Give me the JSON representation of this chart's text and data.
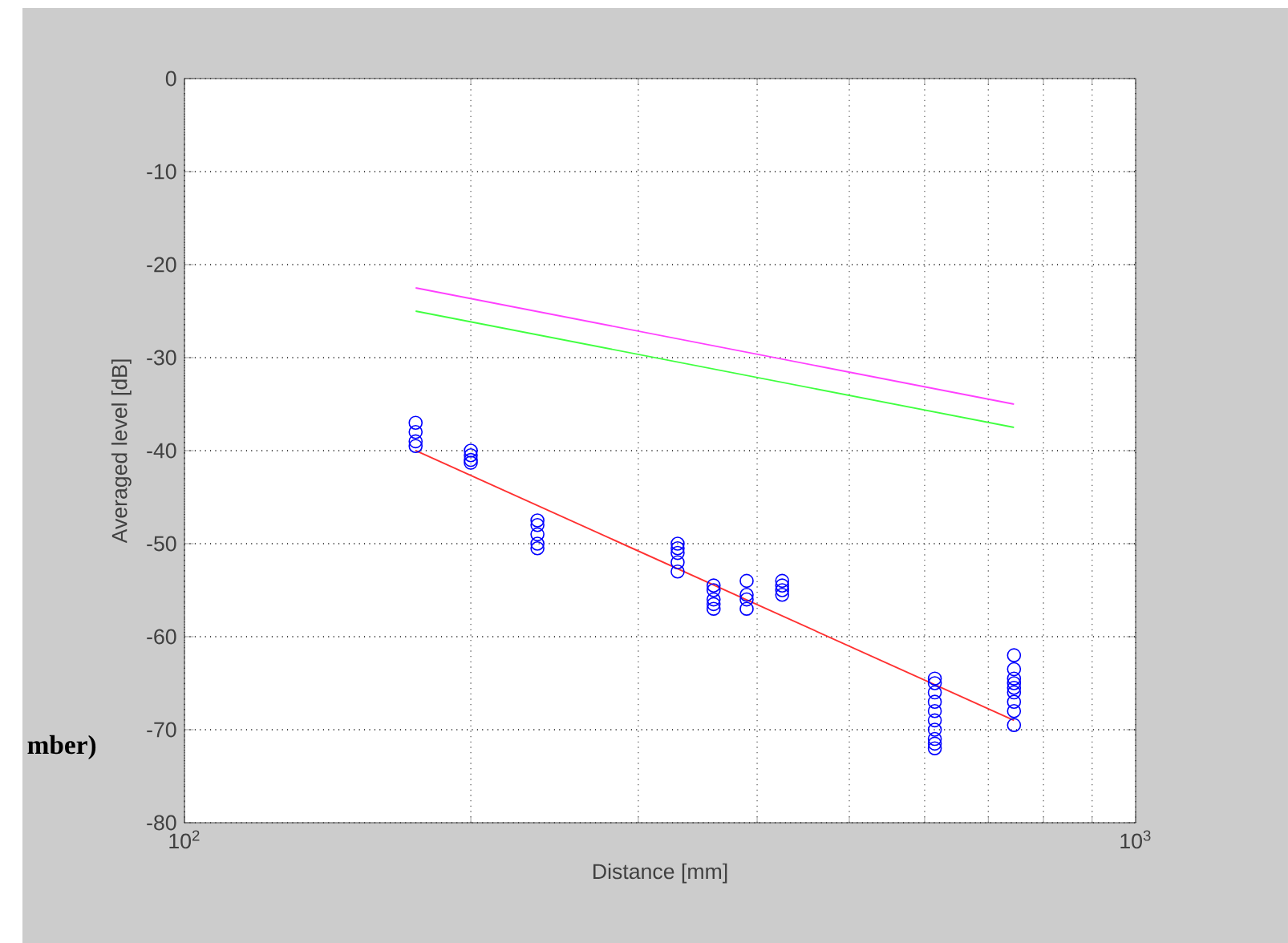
{
  "chart_data": {
    "type": "scatter",
    "xlabel": "Distance [mm]",
    "ylabel": "Averaged level [dB]",
    "log": "x",
    "grid": true,
    "xlim": [
      100,
      1000
    ],
    "xticks": [
      {
        "value": 100,
        "label": "10$^{2}$"
      },
      {
        "value": 1000,
        "label": "10$^{3}$"
      }
    ],
    "ylim": [
      -80,
      0
    ],
    "yticks": [
      -80,
      -70,
      -60,
      -50,
      -40,
      -30,
      -20,
      -10,
      0
    ],
    "annotations": [
      "mber)"
    ],
    "series": [
      {
        "color": "#0000ff",
        "marker": "circle",
        "x": [
          175,
          175,
          175,
          175,
          200,
          200,
          200,
          200,
          235,
          235,
          235,
          235,
          235,
          330,
          330,
          330,
          330,
          330,
          360,
          360,
          360,
          360,
          360,
          390,
          390,
          390,
          390,
          425,
          425,
          425,
          425,
          615,
          615,
          615,
          615,
          615,
          615,
          615,
          615,
          615,
          615,
          745,
          745,
          745,
          745,
          745,
          745,
          745,
          745,
          745
        ],
        "values": [
          -37,
          -38,
          -39,
          -39.5,
          -40,
          -40.5,
          -41,
          -41.3,
          -47.5,
          -48,
          -49,
          -50,
          -50.5,
          -50,
          -50.5,
          -51,
          -52,
          -53,
          -54.5,
          -55,
          -56,
          -56.5,
          -57,
          -54,
          -55.5,
          -56,
          -57,
          -54,
          -54.5,
          -55,
          -55.5,
          -64.5,
          -65,
          -66,
          -67,
          -68,
          -69,
          -70,
          -71,
          -71.5,
          -72,
          -62,
          -63.5,
          -64.5,
          -65,
          -65.5,
          -66,
          -67,
          -68,
          -69.5
        ]
      },
      {
        "type": "line",
        "color": "#ff3030",
        "x": [
          175,
          745
        ],
        "values": [
          -40,
          -69
        ]
      },
      {
        "type": "line",
        "color": "#ff40ff",
        "x": [
          175,
          745
        ],
        "values": [
          -22.5,
          -35
        ]
      },
      {
        "type": "line",
        "color": "#40ff40",
        "x": [
          175,
          745
        ],
        "values": [
          -25,
          -37.5
        ]
      }
    ]
  }
}
